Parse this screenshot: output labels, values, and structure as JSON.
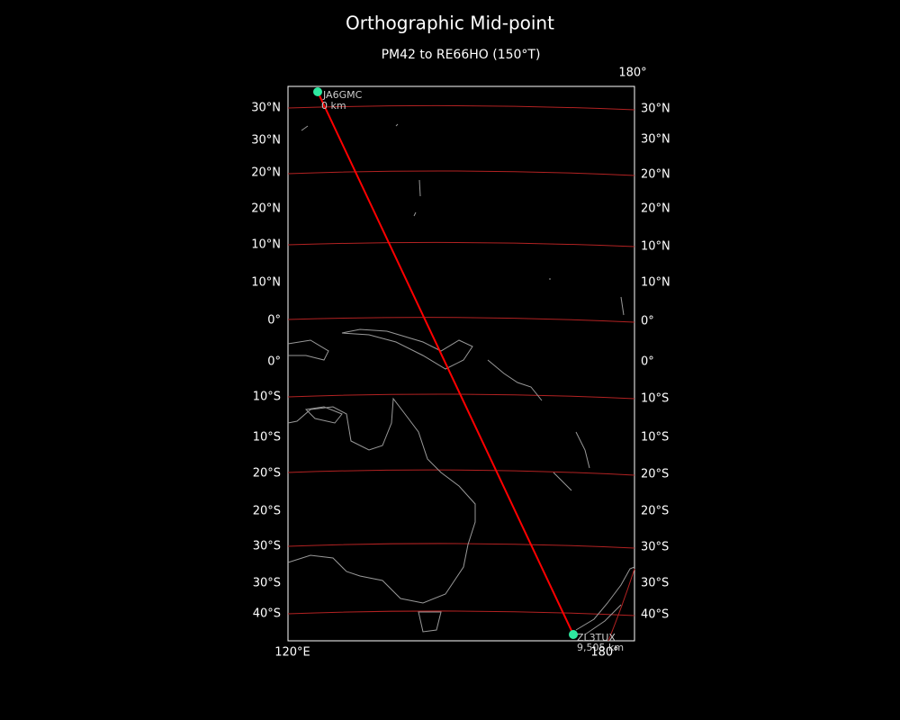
{
  "title": "Orthographic Mid-point",
  "subtitle": "PM42 to RE66HO (150°T)",
  "left_labels": [
    "30°N",
    "30°N",
    "20°N",
    "20°N",
    "10°N",
    "10°N",
    "0°",
    "0°",
    "10°S",
    "10°S",
    "20°S",
    "20°S",
    "30°S",
    "30°S",
    "40°S"
  ],
  "right_labels": [
    "30°N",
    "30°N",
    "20°N",
    "20°N",
    "10°N",
    "10°N",
    "0°",
    "0°",
    "10°S",
    "10°S",
    "20°S",
    "20°S",
    "30°S",
    "30°S",
    "40°S"
  ],
  "top_labels": [
    "180°"
  ],
  "bottom_labels": [
    "120°E",
    "180°"
  ],
  "stations": [
    {
      "name": "JA6GMC",
      "distance": "0 km"
    },
    {
      "name": "ZL3TUX",
      "distance": "9,505 km"
    }
  ]
}
